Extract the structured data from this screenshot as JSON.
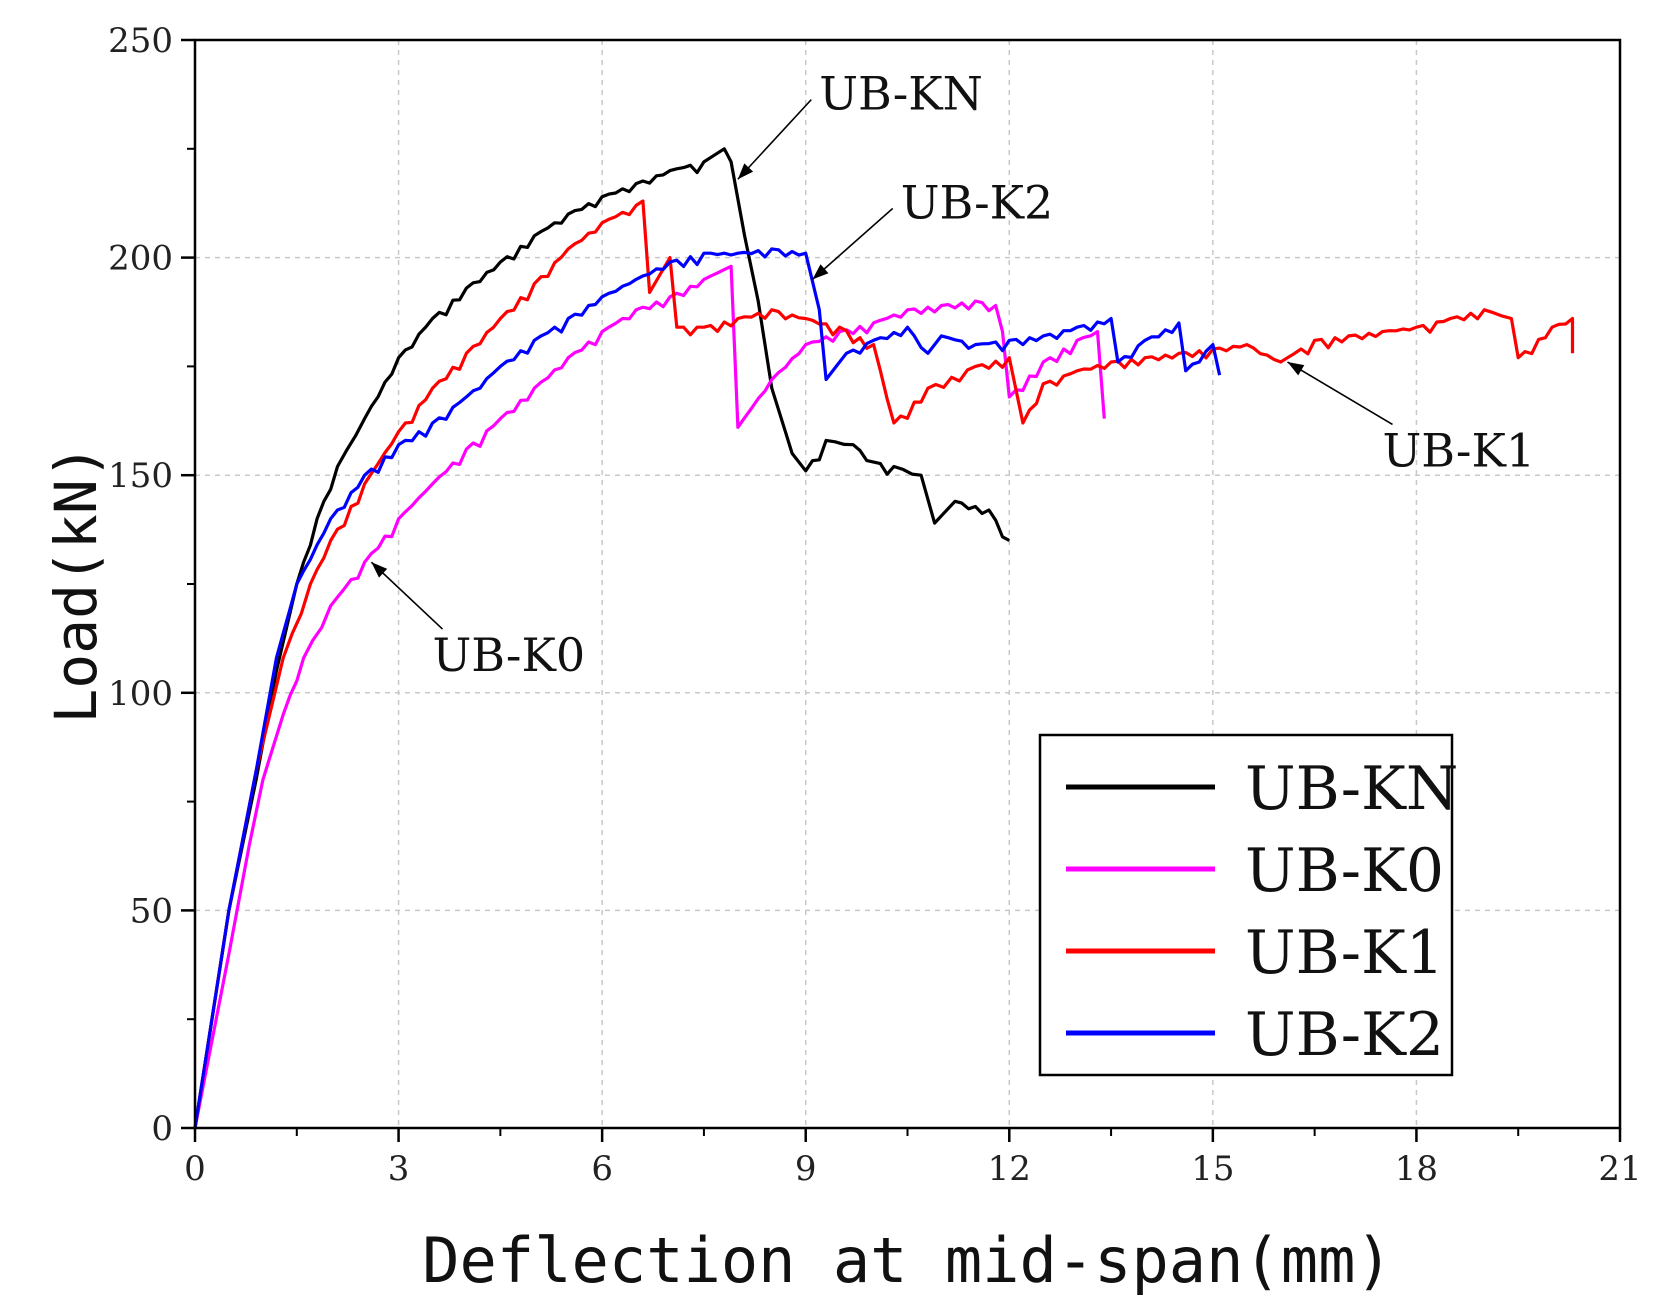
{
  "chart_data": {
    "type": "line",
    "xlabel": "Deflection at mid-span(mm)",
    "ylabel": "Load(kN)",
    "xlim": [
      0,
      21
    ],
    "ylim": [
      0,
      250
    ],
    "xticks": [
      0,
      3,
      6,
      9,
      12,
      15,
      18,
      21
    ],
    "yticks": [
      0,
      50,
      100,
      150,
      200,
      250
    ],
    "grid": true,
    "legend_position": "bottom-right",
    "series": [
      {
        "name": "UB-KN",
        "color": "#000000",
        "points": [
          [
            0,
            0
          ],
          [
            0.5,
            50
          ],
          [
            0.9,
            80
          ],
          [
            1.2,
            105
          ],
          [
            1.5,
            125
          ],
          [
            1.8,
            140
          ],
          [
            2.1,
            152
          ],
          [
            2.5,
            163
          ],
          [
            3.0,
            177
          ],
          [
            3.5,
            186
          ],
          [
            4.0,
            193
          ],
          [
            4.5,
            199
          ],
          [
            5.0,
            205
          ],
          [
            5.5,
            210
          ],
          [
            6.0,
            214
          ],
          [
            6.5,
            217
          ],
          [
            7.0,
            220
          ],
          [
            7.5,
            222
          ],
          [
            7.8,
            225
          ],
          [
            7.9,
            222
          ],
          [
            8.1,
            205
          ],
          [
            8.3,
            190
          ],
          [
            8.5,
            170
          ],
          [
            8.7,
            160
          ],
          [
            8.8,
            155
          ],
          [
            9.0,
            151
          ],
          [
            9.3,
            158
          ],
          [
            9.7,
            157
          ],
          [
            10.0,
            153
          ],
          [
            10.3,
            152
          ],
          [
            10.7,
            150
          ],
          [
            10.9,
            139
          ],
          [
            11.2,
            144
          ],
          [
            11.7,
            142
          ],
          [
            12.0,
            135
          ]
        ]
      },
      {
        "name": "UB-K0",
        "color": "#ff00ff",
        "points": [
          [
            0,
            0
          ],
          [
            0.5,
            40
          ],
          [
            0.8,
            65
          ],
          [
            1.0,
            80
          ],
          [
            1.3,
            95
          ],
          [
            1.6,
            108
          ],
          [
            2.0,
            120
          ],
          [
            2.5,
            130
          ],
          [
            3.0,
            140
          ],
          [
            3.5,
            148
          ],
          [
            4.0,
            156
          ],
          [
            4.5,
            163
          ],
          [
            5.0,
            170
          ],
          [
            5.5,
            177
          ],
          [
            6.0,
            183
          ],
          [
            6.5,
            188
          ],
          [
            7.0,
            191
          ],
          [
            7.5,
            195
          ],
          [
            7.9,
            198
          ],
          [
            8.0,
            161
          ],
          [
            8.5,
            172
          ],
          [
            9.0,
            180
          ],
          [
            9.5,
            183
          ],
          [
            10.0,
            185
          ],
          [
            10.5,
            188
          ],
          [
            11.0,
            189
          ],
          [
            11.5,
            190
          ],
          [
            11.8,
            189
          ],
          [
            11.9,
            183
          ],
          [
            12.0,
            168
          ],
          [
            12.5,
            176
          ],
          [
            13.0,
            181
          ],
          [
            13.3,
            183
          ],
          [
            13.4,
            163
          ]
        ]
      },
      {
        "name": "UB-K1",
        "color": "#ff0000",
        "points": [
          [
            0,
            0
          ],
          [
            0.5,
            50
          ],
          [
            0.9,
            82
          ],
          [
            1.3,
            108
          ],
          [
            1.7,
            125
          ],
          [
            2.0,
            135
          ],
          [
            2.5,
            148
          ],
          [
            3.0,
            160
          ],
          [
            3.5,
            170
          ],
          [
            4.0,
            178
          ],
          [
            4.5,
            186
          ],
          [
            5.0,
            194
          ],
          [
            5.5,
            202
          ],
          [
            6.0,
            208
          ],
          [
            6.5,
            212
          ],
          [
            6.6,
            213
          ],
          [
            6.7,
            192
          ],
          [
            7.0,
            200
          ],
          [
            7.1,
            184
          ],
          [
            7.5,
            184
          ],
          [
            8.0,
            186
          ],
          [
            8.5,
            188
          ],
          [
            9.0,
            186
          ],
          [
            9.5,
            184
          ],
          [
            10.0,
            180
          ],
          [
            10.3,
            162
          ],
          [
            10.8,
            170
          ],
          [
            11.5,
            175
          ],
          [
            12.0,
            177
          ],
          [
            12.2,
            162
          ],
          [
            12.5,
            171
          ],
          [
            13.0,
            174
          ],
          [
            13.5,
            176
          ],
          [
            14.0,
            177
          ],
          [
            14.5,
            178
          ],
          [
            15.0,
            179
          ],
          [
            15.5,
            180
          ],
          [
            16.0,
            176
          ],
          [
            16.5,
            181
          ],
          [
            17.0,
            182
          ],
          [
            17.5,
            183
          ],
          [
            18.0,
            184
          ],
          [
            18.5,
            186
          ],
          [
            19.0,
            188
          ],
          [
            19.4,
            186
          ],
          [
            19.5,
            177
          ],
          [
            20.0,
            184
          ],
          [
            20.3,
            186
          ],
          [
            20.3,
            178
          ]
        ]
      },
      {
        "name": "UB-K2",
        "color": "#0000ff",
        "points": [
          [
            0,
            0
          ],
          [
            0.5,
            50
          ],
          [
            0.9,
            82
          ],
          [
            1.2,
            108
          ],
          [
            1.5,
            125
          ],
          [
            2.0,
            140
          ],
          [
            2.5,
            150
          ],
          [
            3.0,
            157
          ],
          [
            3.5,
            162
          ],
          [
            4.0,
            168
          ],
          [
            4.5,
            175
          ],
          [
            5.0,
            181
          ],
          [
            5.5,
            186
          ],
          [
            6.0,
            191
          ],
          [
            6.5,
            195
          ],
          [
            7.0,
            199
          ],
          [
            7.5,
            201
          ],
          [
            8.0,
            201
          ],
          [
            8.5,
            202
          ],
          [
            9.0,
            201
          ],
          [
            9.2,
            188
          ],
          [
            9.3,
            172
          ],
          [
            9.6,
            178
          ],
          [
            10.0,
            181
          ],
          [
            10.5,
            184
          ],
          [
            10.8,
            178
          ],
          [
            11.0,
            182
          ],
          [
            11.5,
            180
          ],
          [
            12.0,
            181
          ],
          [
            12.5,
            182
          ],
          [
            13.0,
            184
          ],
          [
            13.5,
            186
          ],
          [
            13.6,
            176
          ],
          [
            14.0,
            181
          ],
          [
            14.5,
            185
          ],
          [
            14.6,
            174
          ],
          [
            15.0,
            180
          ],
          [
            15.1,
            173
          ]
        ]
      }
    ],
    "annotations": [
      {
        "text": "UB-KN",
        "series": "UB-KN",
        "point": [
          8.0,
          218
        ],
        "label_at": [
          9.2,
          234
        ]
      },
      {
        "text": "UB-K2",
        "series": "UB-K2",
        "point": [
          9.1,
          195
        ],
        "label_at": [
          10.4,
          209
        ]
      },
      {
        "text": "UB-K0",
        "series": "UB-K0",
        "point": [
          2.6,
          130
        ],
        "label_at": [
          3.5,
          105
        ]
      },
      {
        "text": "UB-K1",
        "series": "UB-K1",
        "point": [
          16.1,
          176
        ],
        "label_at": [
          17.5,
          152
        ]
      }
    ]
  }
}
